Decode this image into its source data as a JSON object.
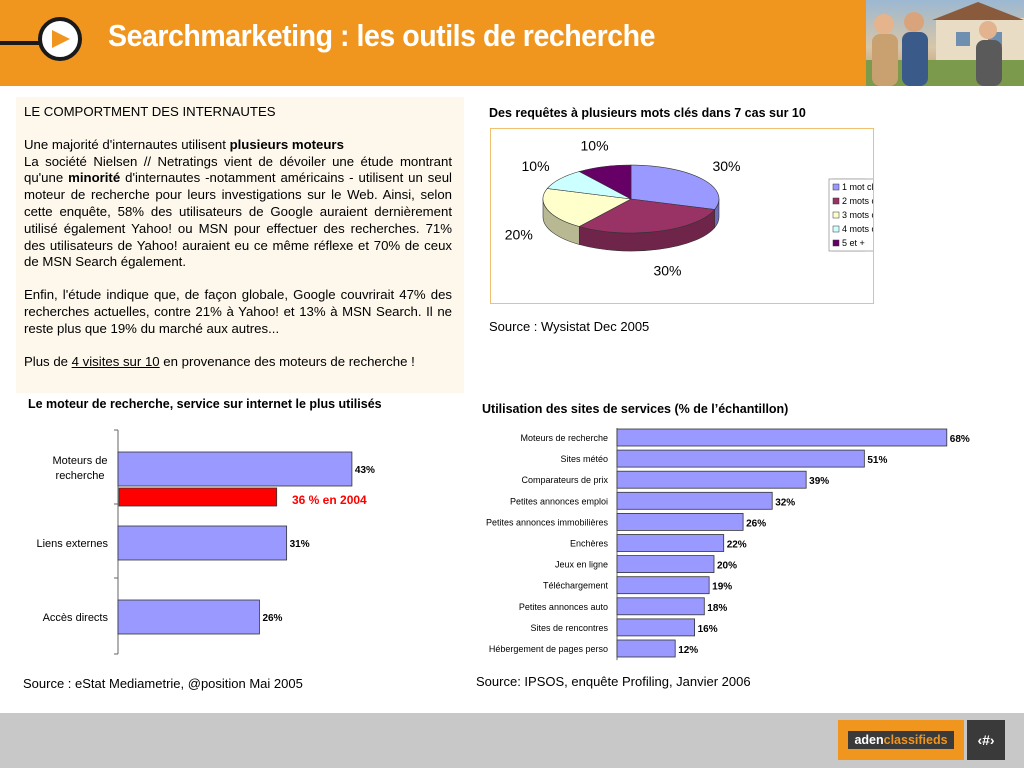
{
  "header": {
    "title": "Searchmarketing : les outils de recherche"
  },
  "textbox": {
    "heading": "LE COMPORTMENT DES INTERNAUTES",
    "p1_lead": "Une majorité d'internautes utilisent ",
    "p1_bold": "plusieurs moteurs",
    "p2_a": "La société Nielsen // Netratings vient de dévoiler une étude montrant qu'une ",
    "p2_bold": "minorité",
    "p2_b": " d'internautes -notamment américains - utilisent un seul moteur de recherche pour leurs investigations sur le Web. Ainsi, selon cette enquête, 58% des utilisateurs de Google auraient dernièrement utilisé également Yahoo! ou MSN pour effectuer des recherches. 71% des utilisateurs de Yahoo! auraient eu ce même réflexe et 70% de ceux de MSN Search également.",
    "p3": "Enfin, l'étude indique que, de façon globale, Google couvrirait 47% des recherches actuelles, contre 21% à Yahoo! et 13% à MSN Search. Il ne reste plus que 19% du marché aux autres...",
    "p4_a": "Plus de ",
    "p4_link": "4 visites sur 10",
    "p4_b": " en provenance des moteurs de recherche !"
  },
  "captions": {
    "pie": "Des requêtes à plusieurs mots clés dans 7 cas sur 10",
    "pie_source": "Source : Wysistat Dec 2005",
    "left": "Le moteur de recherche, service sur internet le plus utilisés",
    "left_source": "Source : eStat Mediametrie, @position Mai 2005",
    "right": "Utilisation des sites de services (% de l’échantillon)",
    "right_source": "Source: IPSOS, enquête Profiling, Janvier 2006"
  },
  "chart_data": [
    {
      "type": "pie",
      "title": "Des requêtes à plusieurs mots clés dans 7 cas sur 10",
      "categories": [
        "1 mot clé",
        "2 mots clés",
        "3 mots clés",
        "4 mots clés",
        "5 et +"
      ],
      "values": [
        30,
        30,
        20,
        10,
        10
      ],
      "labels": [
        "30%",
        "30%",
        "20%",
        "10%",
        "10%"
      ],
      "colors": [
        "#9999ff",
        "#993366",
        "#ffffcc",
        "#ccffff",
        "#660066"
      ],
      "legend": "right",
      "style": "3d"
    },
    {
      "type": "bar",
      "orientation": "horizontal",
      "title": "Le moteur de recherche, service sur internet le plus utilisés",
      "categories": [
        "Moteurs de recherche",
        "Liens externes",
        "Accès directs"
      ],
      "values": [
        43,
        31,
        26
      ],
      "labels": [
        "43%",
        "31%",
        "26%"
      ],
      "color": "#9999ff",
      "annotation": {
        "category": "Moteurs de recherche",
        "value": 36,
        "label": "36 % en 2004",
        "color": "#ff0000"
      }
    },
    {
      "type": "bar",
      "orientation": "horizontal",
      "title": "Utilisation des sites de services (% de l’échantillon)",
      "categories": [
        "Moteurs de recherche",
        "Sites météo",
        "Comparateurs de prix",
        "Petites annonces emploi",
        "Petites annonces immobilières",
        "Enchères",
        "Jeux en ligne",
        "Téléchargement",
        "Petites annonces auto",
        "Sites de rencontres",
        "Hébergement de pages perso"
      ],
      "values": [
        68,
        51,
        39,
        32,
        26,
        22,
        20,
        19,
        18,
        16,
        12
      ],
      "labels": [
        "68%",
        "51%",
        "39%",
        "32%",
        "26%",
        "22%",
        "20%",
        "19%",
        "18%",
        "16%",
        "12%"
      ],
      "color": "#9999ff"
    }
  ],
  "footer": {
    "logo_a": "aden",
    "logo_b": "classifieds",
    "page_number": "‹#›"
  }
}
